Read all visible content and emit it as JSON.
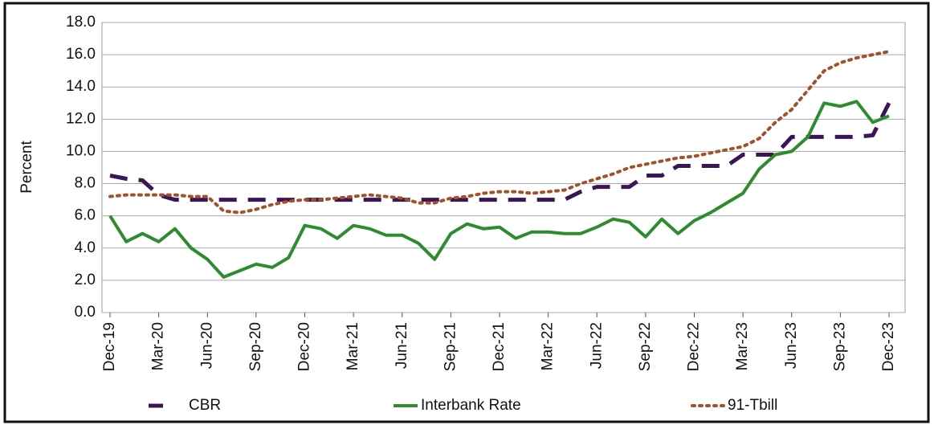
{
  "chart_data": {
    "type": "line",
    "y_label": "Percent",
    "categories": [
      "Dec-19",
      null,
      null,
      "Mar-20",
      null,
      null,
      "Jun-20",
      null,
      null,
      "Sep-20",
      null,
      null,
      "Dec-20",
      null,
      null,
      "Mar-21",
      null,
      null,
      "Jun-21",
      null,
      null,
      "Sep-21",
      null,
      null,
      "Dec-21",
      null,
      null,
      "Mar-22",
      null,
      null,
      "Jun-22",
      null,
      null,
      "Sep-22",
      null,
      null,
      "Dec-22",
      null,
      null,
      "Mar-23",
      null,
      null,
      "Jun-23",
      null,
      null,
      "Sep-23",
      null,
      null,
      "Dec-23"
    ],
    "series": [
      {
        "name": "CBR",
        "color": "#3b1656",
        "style": "dashed",
        "values": [
          8.5,
          8.3,
          8.2,
          7.3,
          7.0,
          7.0,
          7.0,
          7.0,
          7.0,
          7.0,
          7.0,
          7.0,
          7.0,
          7.0,
          7.0,
          7.0,
          7.0,
          7.0,
          7.0,
          7.0,
          7.0,
          7.0,
          7.0,
          7.0,
          7.0,
          7.0,
          7.0,
          7.0,
          7.0,
          7.5,
          7.8,
          7.8,
          7.8,
          8.5,
          8.5,
          9.1,
          9.1,
          9.1,
          9.1,
          9.8,
          9.8,
          9.8,
          10.9,
          10.9,
          10.9,
          10.9,
          10.9,
          11.0,
          13.0
        ]
      },
      {
        "name": "Interbank Rate",
        "color": "#2e8b2e",
        "style": "solid",
        "values": [
          6.0,
          4.4,
          4.9,
          4.4,
          5.2,
          4.0,
          3.3,
          2.2,
          2.6,
          3.0,
          2.8,
          3.4,
          5.4,
          5.2,
          4.6,
          5.4,
          5.2,
          4.8,
          4.8,
          4.3,
          3.3,
          4.9,
          5.5,
          5.2,
          5.3,
          4.6,
          5.0,
          5.0,
          4.9,
          4.9,
          5.3,
          5.8,
          5.6,
          4.7,
          5.8,
          4.9,
          5.7,
          6.2,
          6.8,
          7.4,
          8.9,
          9.8,
          10.0,
          10.9,
          13.0,
          12.8,
          13.1,
          11.8,
          12.2
        ]
      },
      {
        "name": "91-Tbill",
        "color": "#a0522d",
        "style": "dotted",
        "values": [
          7.2,
          7.3,
          7.3,
          7.3,
          7.3,
          7.2,
          7.2,
          6.3,
          6.2,
          6.4,
          6.7,
          6.9,
          7.0,
          7.0,
          7.1,
          7.2,
          7.3,
          7.2,
          7.1,
          6.8,
          6.8,
          7.1,
          7.2,
          7.4,
          7.5,
          7.5,
          7.4,
          7.5,
          7.6,
          8.0,
          8.3,
          8.6,
          9.0,
          9.2,
          9.4,
          9.6,
          9.7,
          9.9,
          10.1,
          10.3,
          10.8,
          11.8,
          12.6,
          13.8,
          15.0,
          15.5,
          15.8,
          16.0,
          16.2
        ]
      }
    ],
    "ylim": [
      0,
      18
    ],
    "yticks": [
      {
        "value": 0,
        "label": "0.0"
      },
      {
        "value": 2,
        "label": "2.0"
      },
      {
        "value": 4,
        "label": "4.0"
      },
      {
        "value": 6,
        "label": "6.0"
      },
      {
        "value": 8,
        "label": "8.0"
      },
      {
        "value": 10,
        "label": "10.0"
      },
      {
        "value": 12,
        "label": "12.0"
      },
      {
        "value": 14,
        "label": "14.0"
      },
      {
        "value": 16,
        "label": "16.0"
      },
      {
        "value": 18,
        "label": "18.0"
      }
    ],
    "grid": true,
    "legend": "bottom"
  }
}
